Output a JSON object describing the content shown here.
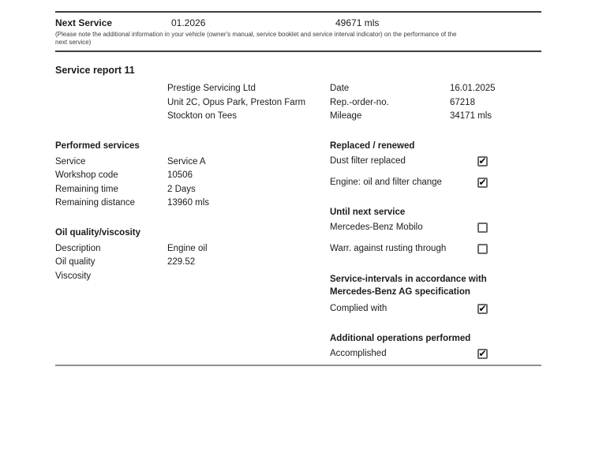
{
  "header": {
    "next_service_label": "Next Service",
    "next_service_date": "01.2026",
    "next_service_mileage": "49671 mls",
    "note_line1": "(Please note the additional information in your vehicle (owner's manual, service booklet and service interval indicator) on the performance of the",
    "note_line2": "next service)"
  },
  "report": {
    "title": "Service report 11",
    "workshop": {
      "name": "Prestige Servicing Ltd",
      "address_line1": "Unit 2C, Opus Park, Preston Farm",
      "address_line2": "Stockton on Tees"
    },
    "meta": [
      {
        "label": "Date",
        "value": "16.01.2025"
      },
      {
        "label": "Rep.-order-no.",
        "value": "67218"
      },
      {
        "label": "Mileage",
        "value": "34171 mls"
      }
    ]
  },
  "performed_services": {
    "title": "Performed services",
    "rows": [
      {
        "label": "Service",
        "value": "Service A"
      },
      {
        "label": "Workshop code",
        "value": "10506"
      },
      {
        "label": "Remaining time",
        "value": "2 Days"
      },
      {
        "label": "Remaining distance",
        "value": "13960 mls"
      }
    ]
  },
  "oil_quality": {
    "title": "Oil quality/viscosity",
    "rows": [
      {
        "label": "Description",
        "value": "Engine oil"
      },
      {
        "label": "Oil quality",
        "value": "229.52"
      },
      {
        "label": "Viscosity",
        "value": ""
      }
    ]
  },
  "checklists": [
    {
      "title": "Replaced / renewed",
      "items": [
        {
          "label": "Dust filter replaced",
          "checked": true
        },
        {
          "label": "Engine: oil and filter change",
          "checked": true
        }
      ]
    },
    {
      "title": "Until next service",
      "items": [
        {
          "label": "Mercedes-Benz Mobilo",
          "checked": false
        },
        {
          "label": "Warr. against rusting through",
          "checked": false
        }
      ]
    },
    {
      "title": "Service-intervals in accordance with Mercedes-Benz AG specification",
      "items": [
        {
          "label": "Complied with",
          "checked": true
        }
      ]
    },
    {
      "title": "Additional operations performed",
      "items": [
        {
          "label": "Accomplished",
          "checked": true
        }
      ]
    }
  ],
  "icons": {
    "check_glyph": "✔"
  },
  "colors": {
    "rule_dark": "#3f3f3f",
    "rule_light": "#8f8f8f",
    "text": "#1c1c1c",
    "note_text": "#3c3c3c",
    "checkbox_border": "#6a6a6a",
    "check_mark": "#0a0a0a",
    "background": "#ffffff"
  }
}
